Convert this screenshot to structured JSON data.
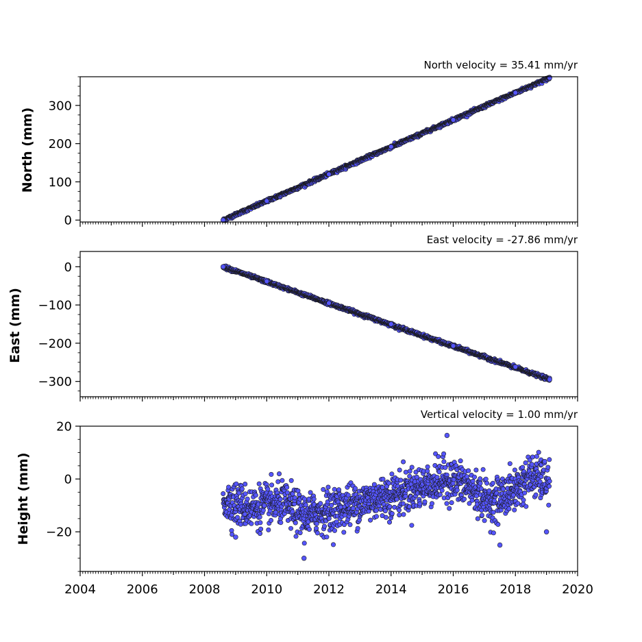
{
  "chart_data": [
    {
      "type": "scatter",
      "title": "North velocity = 35.41 mm/yr",
      "ylabel": "North (mm)",
      "xlim": [
        2004,
        2020
      ],
      "ylim": [
        -5,
        375
      ],
      "yticks": [
        0,
        100,
        200,
        300
      ],
      "ytick_labels": [
        "0",
        "100",
        "200",
        "300"
      ],
      "x_tick_labels_shown": false,
      "marker_color": "#5555ff",
      "series": [
        {
          "x_range": [
            2008.6,
            2019.1
          ],
          "trend": {
            "start": [
              2008.6,
              0
            ],
            "end": [
              2019.1,
              372
            ]
          },
          "noise_mm": 2,
          "points": [
            [
              2008.6,
              0
            ],
            [
              2010.0,
              50
            ],
            [
              2012.0,
              120
            ],
            [
              2014.0,
              192
            ],
            [
              2016.0,
              262
            ],
            [
              2018.0,
              333
            ],
            [
              2019.1,
              372
            ]
          ]
        }
      ]
    },
    {
      "type": "scatter",
      "title": "East velocity = -27.86 mm/yr",
      "ylabel": "East (mm)",
      "xlim": [
        2004,
        2020
      ],
      "ylim": [
        -340,
        40
      ],
      "yticks": [
        0,
        -100,
        -200,
        -300
      ],
      "ytick_labels": [
        "0",
        "−100",
        "−200",
        "−300"
      ],
      "x_tick_labels_shown": false,
      "marker_color": "#5555ff",
      "series": [
        {
          "x_range": [
            2008.6,
            2019.1
          ],
          "trend": {
            "start": [
              2008.6,
              0
            ],
            "end": [
              2019.1,
              -295
            ]
          },
          "noise_mm": 2,
          "points": [
            [
              2008.6,
              0
            ],
            [
              2010.0,
              -38
            ],
            [
              2012.0,
              -95
            ],
            [
              2014.0,
              -150
            ],
            [
              2016.0,
              -207
            ],
            [
              2018.0,
              -262
            ],
            [
              2019.1,
              -295
            ]
          ]
        }
      ]
    },
    {
      "type": "scatter",
      "title": "Vertical velocity = 1.00 mm/yr",
      "ylabel": "Height (mm)",
      "xlim": [
        2004,
        2020
      ],
      "ylim": [
        -35,
        20
      ],
      "yticks": [
        20,
        0,
        -20
      ],
      "ytick_labels": [
        "20",
        "0",
        "−20"
      ],
      "xticks": [
        2004,
        2006,
        2008,
        2010,
        2012,
        2014,
        2016,
        2018,
        2020
      ],
      "xtick_labels": [
        "2004",
        "2006",
        "2008",
        "2010",
        "2012",
        "2014",
        "2016",
        "2018",
        "2020"
      ],
      "x_tick_labels_shown": true,
      "marker_color": "#5555ff",
      "series": [
        {
          "x_range": [
            2008.6,
            2019.1
          ],
          "mean_curve": [
            [
              2008.6,
              -8
            ],
            [
              2009.5,
              -11
            ],
            [
              2010.5,
              -9
            ],
            [
              2011.2,
              -14
            ],
            [
              2012.0,
              -12
            ],
            [
              2013.0,
              -9
            ],
            [
              2014.0,
              -6
            ],
            [
              2015.0,
              -3
            ],
            [
              2015.8,
              0
            ],
            [
              2016.5,
              -3
            ],
            [
              2017.2,
              -9
            ],
            [
              2018.0,
              -4
            ],
            [
              2018.5,
              1
            ],
            [
              2019.1,
              -1
            ]
          ],
          "scatter_sd_mm": 4,
          "extremes": [
            [
              2011.2,
              -30
            ],
            [
              2015.8,
              16.5
            ],
            [
              2009.0,
              -22
            ],
            [
              2017.5,
              -25
            ],
            [
              2019.0,
              -20
            ]
          ]
        }
      ]
    }
  ]
}
